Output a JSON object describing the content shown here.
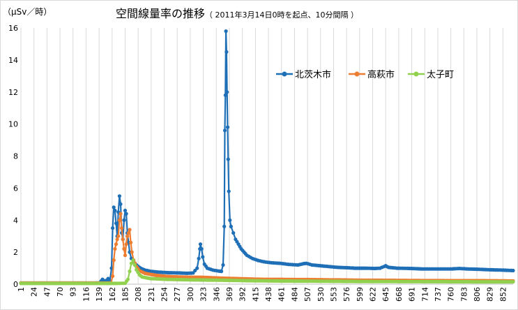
{
  "chart_data": {
    "type": "line",
    "title": "空間線量率の推移",
    "subtitle": "（ 2011年3月14日0時を起点、10分間隔 ）",
    "ylabel": "（µSv／時）",
    "xlabel": "",
    "ylim": [
      0,
      16
    ],
    "yticks": [
      0,
      2,
      4,
      6,
      8,
      10,
      12,
      14,
      16
    ],
    "xlim": [
      1,
      870
    ],
    "xticks": [
      1,
      24,
      47,
      70,
      93,
      116,
      139,
      162,
      185,
      208,
      231,
      254,
      277,
      300,
      323,
      346,
      369,
      392,
      415,
      438,
      461,
      484,
      507,
      530,
      553,
      576,
      599,
      622,
      645,
      668,
      691,
      714,
      737,
      760,
      783,
      806,
      829,
      852
    ],
    "grid": "vertical",
    "legend": "upper-right",
    "series": [
      {
        "name": "北茨木市",
        "color": "#1f6fb7",
        "points": [
          [
            1,
            0.07
          ],
          [
            40,
            0.07
          ],
          [
            80,
            0.07
          ],
          [
            120,
            0.07
          ],
          [
            140,
            0.08
          ],
          [
            145,
            0.3
          ],
          [
            150,
            0.15
          ],
          [
            155,
            0.35
          ],
          [
            158,
            0.2
          ],
          [
            161,
            1.0
          ],
          [
            163,
            3.5
          ],
          [
            165,
            4.8
          ],
          [
            167,
            4.6
          ],
          [
            169,
            3.8
          ],
          [
            171,
            3.0
          ],
          [
            173,
            4.5
          ],
          [
            175,
            5.5
          ],
          [
            177,
            5.0
          ],
          [
            179,
            3.2
          ],
          [
            181,
            2.8
          ],
          [
            183,
            4.0
          ],
          [
            185,
            4.6
          ],
          [
            187,
            4.4
          ],
          [
            189,
            3.2
          ],
          [
            191,
            2.6
          ],
          [
            193,
            2.0
          ],
          [
            196,
            1.6
          ],
          [
            200,
            1.4
          ],
          [
            205,
            1.2
          ],
          [
            210,
            1.05
          ],
          [
            215,
            0.95
          ],
          [
            220,
            0.88
          ],
          [
            230,
            0.8
          ],
          [
            245,
            0.75
          ],
          [
            260,
            0.72
          ],
          [
            280,
            0.7
          ],
          [
            295,
            0.68
          ],
          [
            305,
            0.7
          ],
          [
            312,
            1.0
          ],
          [
            315,
            1.6
          ],
          [
            317,
            2.2
          ],
          [
            318,
            2.5
          ],
          [
            320,
            2.2
          ],
          [
            322,
            1.7
          ],
          [
            325,
            1.25
          ],
          [
            330,
            1.0
          ],
          [
            340,
            0.88
          ],
          [
            350,
            0.82
          ],
          [
            355,
            0.8
          ],
          [
            358,
            1.2
          ],
          [
            360,
            3.6
          ],
          [
            361,
            9.6
          ],
          [
            362,
            11.8
          ],
          [
            363,
            15.8
          ],
          [
            364,
            14.5
          ],
          [
            365,
            12.0
          ],
          [
            366,
            9.8
          ],
          [
            367,
            7.8
          ],
          [
            368,
            5.8
          ],
          [
            370,
            4.0
          ],
          [
            372,
            3.6
          ],
          [
            376,
            3.2
          ],
          [
            380,
            2.8
          ],
          [
            385,
            2.5
          ],
          [
            390,
            2.2
          ],
          [
            395,
            2.0
          ],
          [
            400,
            1.8
          ],
          [
            410,
            1.6
          ],
          [
            420,
            1.48
          ],
          [
            430,
            1.4
          ],
          [
            440,
            1.35
          ],
          [
            450,
            1.32
          ],
          [
            460,
            1.3
          ],
          [
            470,
            1.25
          ],
          [
            480,
            1.22
          ],
          [
            490,
            1.2
          ],
          [
            500,
            1.28
          ],
          [
            505,
            1.3
          ],
          [
            515,
            1.2
          ],
          [
            530,
            1.15
          ],
          [
            545,
            1.1
          ],
          [
            560,
            1.05
          ],
          [
            575,
            1.03
          ],
          [
            590,
            1.0
          ],
          [
            610,
            1.0
          ],
          [
            625,
            0.98
          ],
          [
            635,
            1.0
          ],
          [
            642,
            1.1
          ],
          [
            645,
            1.15
          ],
          [
            650,
            1.05
          ],
          [
            665,
            1.0
          ],
          [
            690,
            0.98
          ],
          [
            710,
            0.95
          ],
          [
            730,
            0.95
          ],
          [
            760,
            0.95
          ],
          [
            775,
            0.98
          ],
          [
            790,
            0.95
          ],
          [
            810,
            0.93
          ],
          [
            830,
            0.9
          ],
          [
            850,
            0.88
          ],
          [
            870,
            0.85
          ]
        ]
      },
      {
        "name": "高萩市",
        "color": "#ed7d31",
        "points": [
          [
            1,
            0.07
          ],
          [
            60,
            0.07
          ],
          [
            100,
            0.07
          ],
          [
            135,
            0.07
          ],
          [
            160,
            0.07
          ],
          [
            163,
            0.5
          ],
          [
            165,
            1.5
          ],
          [
            167,
            2.2
          ],
          [
            169,
            2.5
          ],
          [
            171,
            2.8
          ],
          [
            173,
            3.0
          ],
          [
            175,
            4.0
          ],
          [
            177,
            4.4
          ],
          [
            179,
            3.5
          ],
          [
            181,
            2.8
          ],
          [
            183,
            2.2
          ],
          [
            185,
            1.8
          ],
          [
            187,
            2.5
          ],
          [
            189,
            3.0
          ],
          [
            191,
            3.2
          ],
          [
            193,
            3.4
          ],
          [
            195,
            2.6
          ],
          [
            197,
            2.0
          ],
          [
            200,
            1.5
          ],
          [
            205,
            1.1
          ],
          [
            210,
            0.85
          ],
          [
            220,
            0.68
          ],
          [
            240,
            0.55
          ],
          [
            260,
            0.48
          ],
          [
            280,
            0.45
          ],
          [
            300,
            0.43
          ],
          [
            320,
            0.43
          ],
          [
            340,
            0.4
          ],
          [
            360,
            0.37
          ],
          [
            380,
            0.35
          ],
          [
            400,
            0.33
          ],
          [
            430,
            0.3
          ],
          [
            460,
            0.3
          ],
          [
            500,
            0.29
          ],
          [
            550,
            0.27
          ],
          [
            600,
            0.25
          ],
          [
            650,
            0.24
          ],
          [
            700,
            0.23
          ],
          [
            750,
            0.22
          ],
          [
            800,
            0.22
          ],
          [
            850,
            0.21
          ],
          [
            870,
            0.2
          ]
        ]
      },
      {
        "name": "太子町",
        "color": "#92d050",
        "points": [
          [
            1,
            0.05
          ],
          [
            100,
            0.05
          ],
          [
            170,
            0.05
          ],
          [
            185,
            0.06
          ],
          [
            190,
            0.3
          ],
          [
            193,
            0.8
          ],
          [
            196,
            1.3
          ],
          [
            199,
            1.5
          ],
          [
            202,
            1.2
          ],
          [
            205,
            0.9
          ],
          [
            210,
            0.6
          ],
          [
            215,
            0.45
          ],
          [
            230,
            0.35
          ],
          [
            260,
            0.3
          ],
          [
            300,
            0.27
          ],
          [
            350,
            0.25
          ],
          [
            400,
            0.22
          ],
          [
            450,
            0.2
          ],
          [
            500,
            0.19
          ],
          [
            600,
            0.17
          ],
          [
            700,
            0.16
          ],
          [
            800,
            0.15
          ],
          [
            870,
            0.15
          ]
        ]
      }
    ]
  }
}
